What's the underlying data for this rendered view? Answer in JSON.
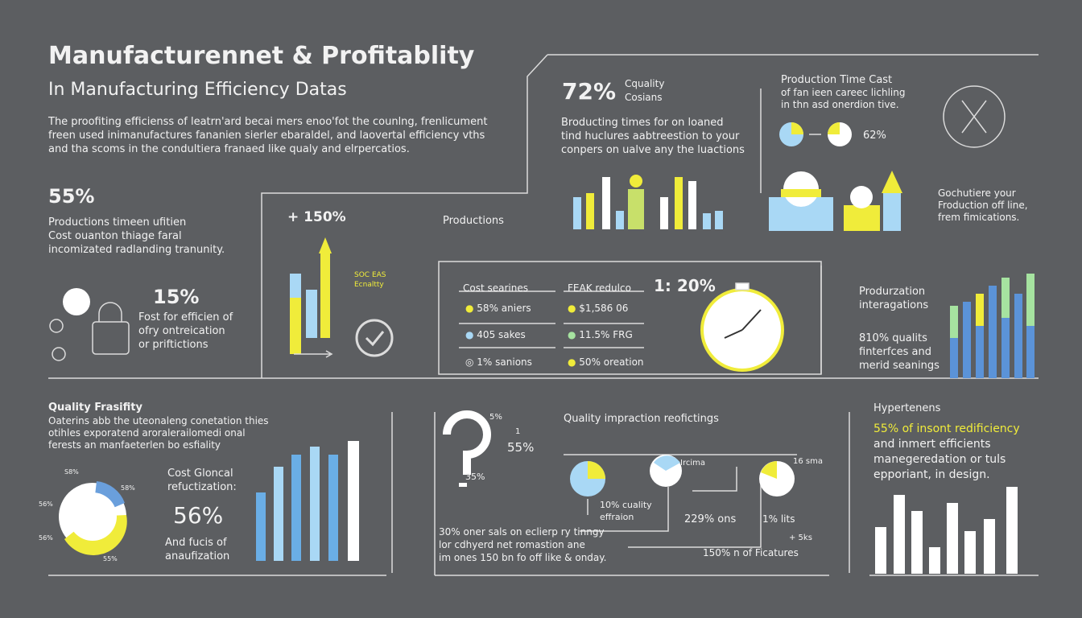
{
  "header": {
    "title": "Manufacturennet & Profitablity",
    "subtitle": "In Manufacturing Efficiency Datas",
    "intro": [
      "The proofiting efficienss of leatrn'ard becai mers enoo'fot the counlng, frenlicument",
      "freen used inimanufactures fananien sierler ebaraldel, and laovertal efficiency vths",
      "and tha scoms in the condultiera franaed like qualy and elrpercatios."
    ]
  },
  "left": {
    "stat1": "55%",
    "lines1": [
      "Productions timeen ufitien",
      "Cost ouanton thiage faral",
      "incomizated radlanding tranunity."
    ],
    "stat2": "15%",
    "lines2": [
      "Fost for efficien of",
      "ofry ontreication",
      "or priftictions"
    ]
  },
  "growth": {
    "stat": "+ 150%",
    "legend": [
      "SOC EAS",
      "Ecnaltty"
    ],
    "label": "Productions"
  },
  "top_center": {
    "stat": "72%",
    "stat_note": [
      "Cquality",
      "Cosians"
    ],
    "lines": [
      "Broducting times for on loaned",
      "tind huclures aabtreestion to your",
      "conpers on ualve any the luactions"
    ]
  },
  "top_right": {
    "title": "Production Time Cast",
    "lines": [
      "of fan ieen careec lichling",
      "in thn asd onerdion tive."
    ],
    "stat": "62%",
    "lines2": [
      "Gochutiere your",
      "Froduction off line,",
      "frem fimications."
    ]
  },
  "table": {
    "headers": [
      "Cost searines",
      "FEAK redulco"
    ],
    "highlight": "1: 20%",
    "rows": [
      [
        "58% aniers",
        "$1,586 06"
      ],
      [
        "405 sakes",
        "11.5% FRG"
      ],
      [
        "1% sanions",
        "50% oreation"
      ]
    ]
  },
  "right": {
    "title": [
      "Produrzation",
      "interagations"
    ],
    "lines": [
      "810% qualits",
      "finterfces and",
      "merid seanings"
    ]
  },
  "bottom_left": {
    "title": "Quality Frasifity",
    "lines": [
      "Oaterins abb the uteonaleng conetation thies",
      "otihles exporatend aroralerailomedi onal",
      "ferests an manfaeterlen bo esfiality"
    ],
    "pie_labels": [
      "S8%",
      "58%",
      "56%",
      "56%",
      "55%"
    ],
    "caption": [
      "Cost Gloncal",
      "refuctization:"
    ],
    "stat": "56%",
    "note": [
      "And fucis of",
      "anaufization"
    ]
  },
  "bottom_center": {
    "question_labels": [
      "5%",
      "1",
      "55%",
      "35%"
    ],
    "title": "Quality impraction reofictings",
    "nodes": [
      "Ircima",
      "16 sma",
      "10% cuality",
      "effraion",
      "229% ons",
      "1% lits",
      "+ 5ks",
      "150% n of Ficatures"
    ],
    "notes": [
      "30% oner sals on eclierp ry tinngy",
      "lor cdhyerd net romastion ane",
      "im ones 150 bn fo off like & onday."
    ]
  },
  "bottom_right": {
    "title": "Hypertenens",
    "lines": [
      "55% of insont redificiency",
      "and inmert efficients",
      "manegeredation or tuls",
      "epporiant, in design."
    ]
  }
}
